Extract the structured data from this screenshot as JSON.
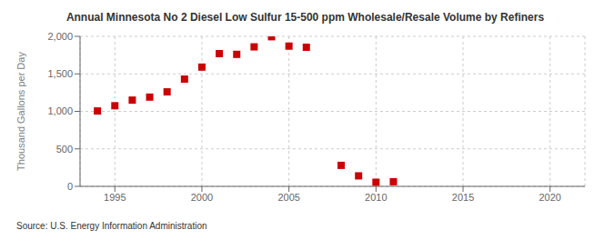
{
  "chart_data": {
    "type": "scatter",
    "title": "Annual Minnesota No 2 Diesel Low Sulfur 15-500 ppm Wholesale/Resale Volume by Refiners",
    "ylabel": "Thousand Gallons per Day",
    "annotation": "Source: U.S. Energy Information Administration",
    "x": [
      1994,
      1995,
      1996,
      1997,
      1998,
      1999,
      2000,
      2001,
      2002,
      2003,
      2004,
      2005,
      2006,
      2008,
      2009,
      2010,
      2011
    ],
    "values": [
      1005,
      1075,
      1150,
      1190,
      1260,
      1430,
      1590,
      1770,
      1760,
      1860,
      1995,
      1870,
      1855,
      280,
      140,
      55,
      62
    ],
    "color": "#cc0000",
    "marker": "square",
    "xlim": [
      1993,
      2022
    ],
    "xticks": [
      1995,
      2000,
      2005,
      2010,
      2015,
      2020
    ],
    "ylim": [
      0,
      2000
    ],
    "yticks": [
      0,
      500,
      {
        "value": 1000,
        "label": "1,000"
      },
      {
        "value": 1500,
        "label": "1,500"
      },
      {
        "value": 2000,
        "label": "2,000"
      }
    ],
    "grid": true
  }
}
